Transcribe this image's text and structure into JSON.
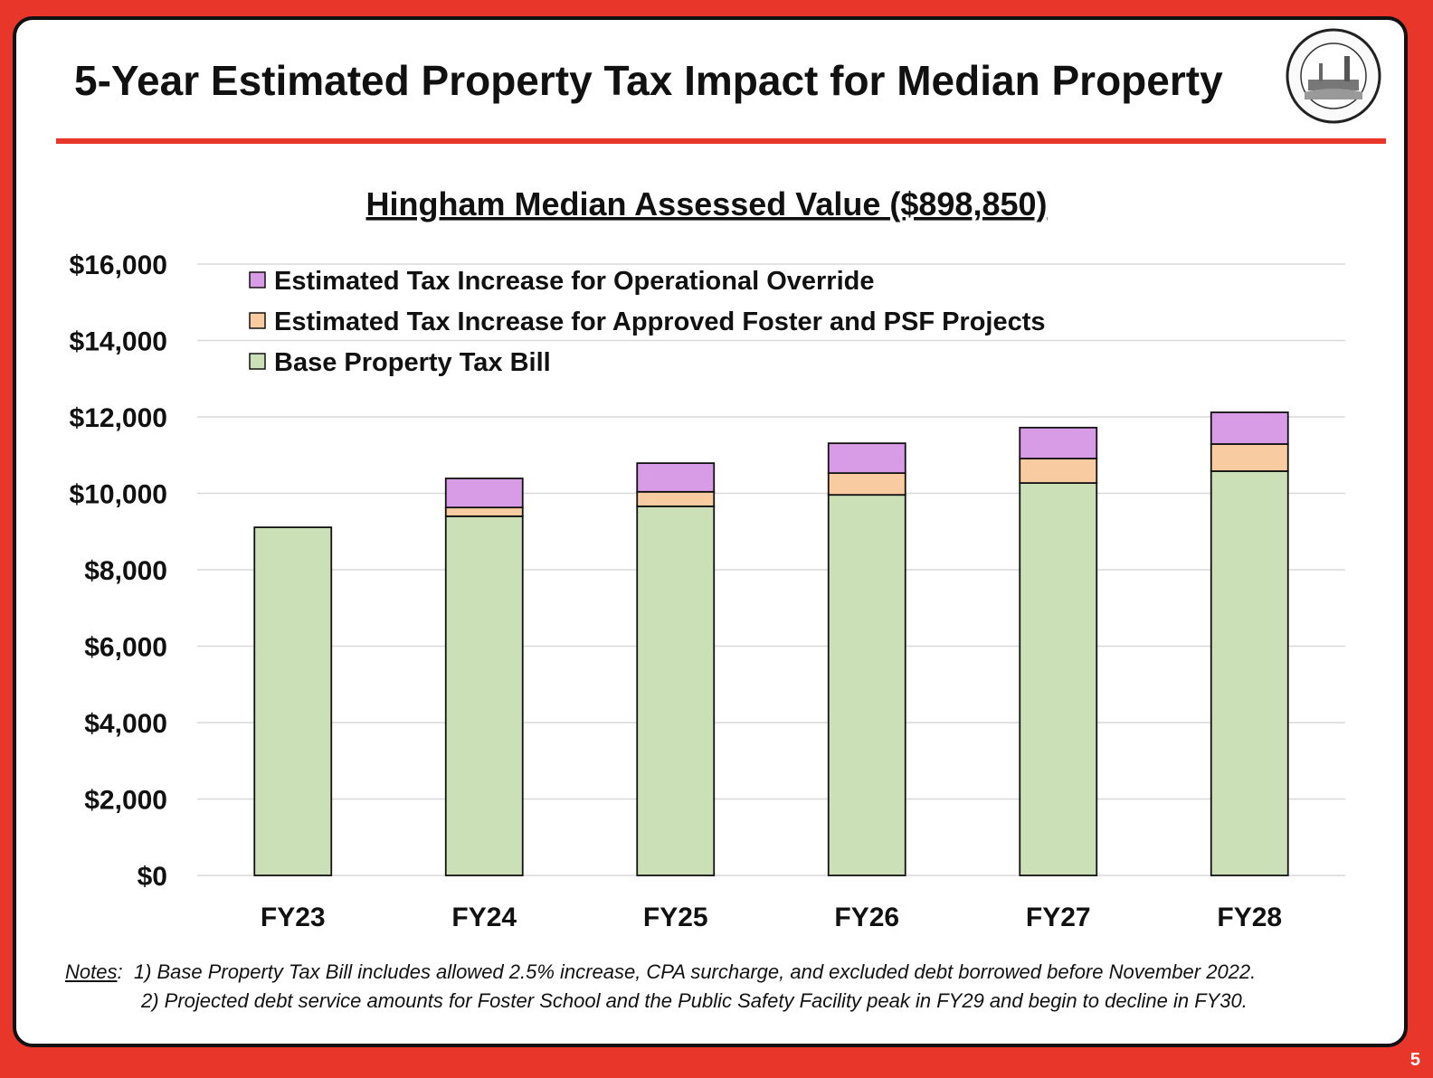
{
  "slide": {
    "title": "5-Year Estimated Property Tax Impact for Median Property",
    "seal_text": "CHURCH SCHOOL BARE COVE 1635 HINGHAM TOWN MEETING TRAINBAND TOWN SEAL",
    "page_number": "5"
  },
  "notes": {
    "label": "Notes",
    "line1": "1) Base Property Tax Bill includes allowed 2.5% increase, CPA surcharge, and excluded debt borrowed before November 2022.",
    "line2": "2) Projected debt service amounts for Foster School and the Public Safety Facility peak in FY29 and begin to decline in FY30."
  },
  "colors": {
    "base": "#cce0b8",
    "foster": "#f8cca0",
    "override": "#d89ce6",
    "accent": "#e8362a"
  },
  "chart_data": {
    "type": "bar",
    "stacked": true,
    "title": "Hingham Median Assessed Value ($898,850)",
    "xlabel": "",
    "ylabel": "",
    "ylim": [
      0,
      16000
    ],
    "yticks": [
      0,
      2000,
      4000,
      6000,
      8000,
      10000,
      12000,
      14000,
      16000
    ],
    "ytick_labels": [
      "$0",
      "$2,000",
      "$4,000",
      "$6,000",
      "$8,000",
      "$10,000",
      "$12,000",
      "$14,000",
      "$16,000"
    ],
    "grid": true,
    "legend_position": "top-left",
    "categories": [
      "FY23",
      "FY24",
      "FY25",
      "FY26",
      "FY27",
      "FY28"
    ],
    "series": [
      {
        "name": "Base Property Tax Bill",
        "key": "base",
        "values": [
          9110,
          9400,
          9660,
          9960,
          10270,
          10580
        ]
      },
      {
        "name": "Estimated Tax Increase for Approved Foster and PSF Projects",
        "key": "foster",
        "values": [
          0,
          230,
          380,
          570,
          640,
          710
        ]
      },
      {
        "name": "Estimated Tax Increase for Operational Override",
        "key": "override",
        "values": [
          0,
          760,
          750,
          780,
          810,
          830
        ]
      }
    ],
    "legend_order": [
      2,
      1,
      0
    ]
  }
}
